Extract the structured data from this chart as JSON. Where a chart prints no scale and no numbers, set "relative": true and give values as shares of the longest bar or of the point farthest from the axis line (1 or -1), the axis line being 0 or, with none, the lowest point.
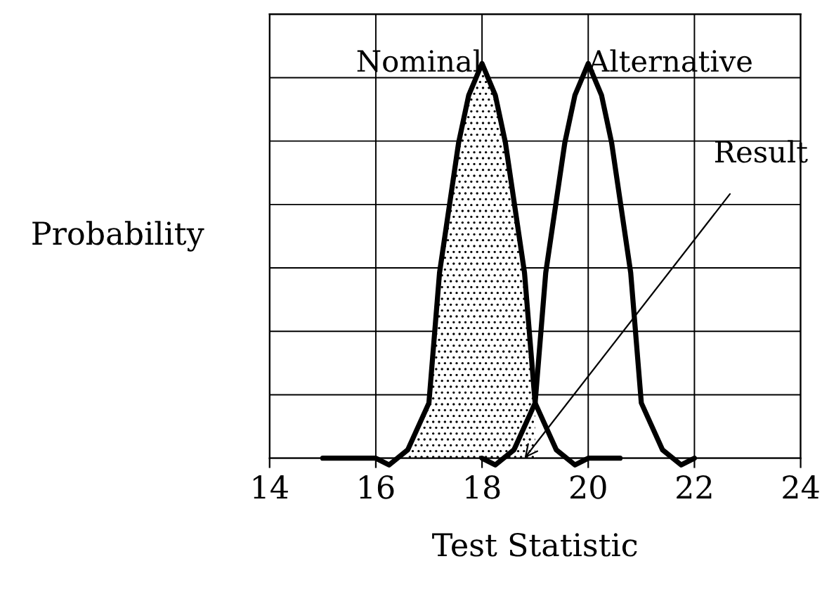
{
  "chart_data": {
    "type": "line",
    "relative": true,
    "xlabel": "Test Statistic",
    "ylabel": "Probability",
    "xlim": [
      14,
      24
    ],
    "xticks": [
      14,
      16,
      18,
      20,
      22,
      24
    ],
    "grid": true,
    "legend": false,
    "marker": "none",
    "line_style": "solid",
    "series": [
      {
        "type": "area",
        "color": "#000000",
        "x": [
          16.6,
          17.0,
          17.2,
          17.56,
          17.75,
          18.0,
          18.25,
          18.44,
          18.8,
          19.0
        ],
        "values": [
          0.021,
          0.14,
          0.47,
          0.8,
          0.92,
          1,
          0.92,
          0.8,
          0.47,
          0.14
        ]
      },
      {
        "name": "Nominal",
        "color": "#000000",
        "x": [
          15.0,
          16.0,
          16.25,
          16.6,
          17.0,
          17.2,
          17.56,
          17.75,
          18.0,
          18.25,
          18.44,
          18.8,
          19.0,
          19.4,
          19.75,
          20.0,
          20.6
        ],
        "values": [
          0,
          0,
          -0.017,
          0.021,
          0.14,
          0.47,
          0.8,
          0.92,
          1,
          0.92,
          0.8,
          0.47,
          0.14,
          0.021,
          -0.017,
          0,
          0
        ]
      },
      {
        "name": "Alternative",
        "color": "#000000",
        "x": [
          18.0,
          18.25,
          18.6,
          19.0,
          19.2,
          19.56,
          19.75,
          20.0,
          20.25,
          20.44,
          20.8,
          21.0,
          21.4,
          21.75,
          22.0
        ],
        "values": [
          0,
          -0.017,
          0.021,
          0.14,
          0.47,
          0.8,
          0.92,
          1,
          0.92,
          0.8,
          0.47,
          0.14,
          0.021,
          -0.017,
          0
        ]
      }
    ],
    "annotations": [
      {
        "text": "Result",
        "x": 18.8,
        "y": 0
      }
    ]
  }
}
